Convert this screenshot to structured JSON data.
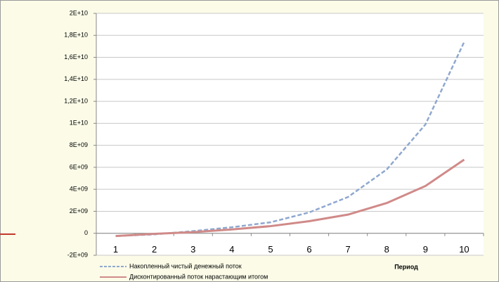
{
  "chart_data": {
    "type": "line",
    "x_label": "Период",
    "categories": [
      "1",
      "2",
      "3",
      "4",
      "5",
      "6",
      "7",
      "8",
      "9",
      "10"
    ],
    "series": [
      {
        "name": "Накопленный чистый денежный поток",
        "color": "#8fa8cf",
        "dash": true,
        "values": [
          -250000000,
          -100000000,
          200000000,
          550000000,
          1000000000,
          1900000000,
          3300000000,
          5800000000,
          9900000000,
          17400000000
        ]
      },
      {
        "name": "Дисконтированный поток нарастающим итогом",
        "color": "#d08a88",
        "dash": false,
        "values": [
          -250000000,
          -50000000,
          100000000,
          350000000,
          650000000,
          1100000000,
          1700000000,
          2750000000,
          4300000000,
          6700000000
        ]
      }
    ],
    "ylim": [
      -2000000000,
      20000000000
    ],
    "yticks": [
      {
        "value": -2000000000,
        "label": "-2E+09"
      },
      0,
      {
        "value": 2000000000,
        "label": "2E+09"
      },
      {
        "value": 4000000000,
        "label": "4E+09"
      },
      {
        "value": 6000000000,
        "label": "6E+09"
      },
      {
        "value": 8000000000,
        "label": "8E+09"
      },
      {
        "value": 10000000000,
        "label": "1E+10"
      },
      {
        "value": 12000000000,
        "label": "1,2E+10"
      },
      {
        "value": 14000000000,
        "label": "1,4E+10"
      },
      {
        "value": 16000000000,
        "label": "1,6E+10"
      },
      {
        "value": 18000000000,
        "label": "1,8E+10"
      },
      {
        "value": 20000000000,
        "label": "2E+10"
      }
    ],
    "grid": true
  }
}
